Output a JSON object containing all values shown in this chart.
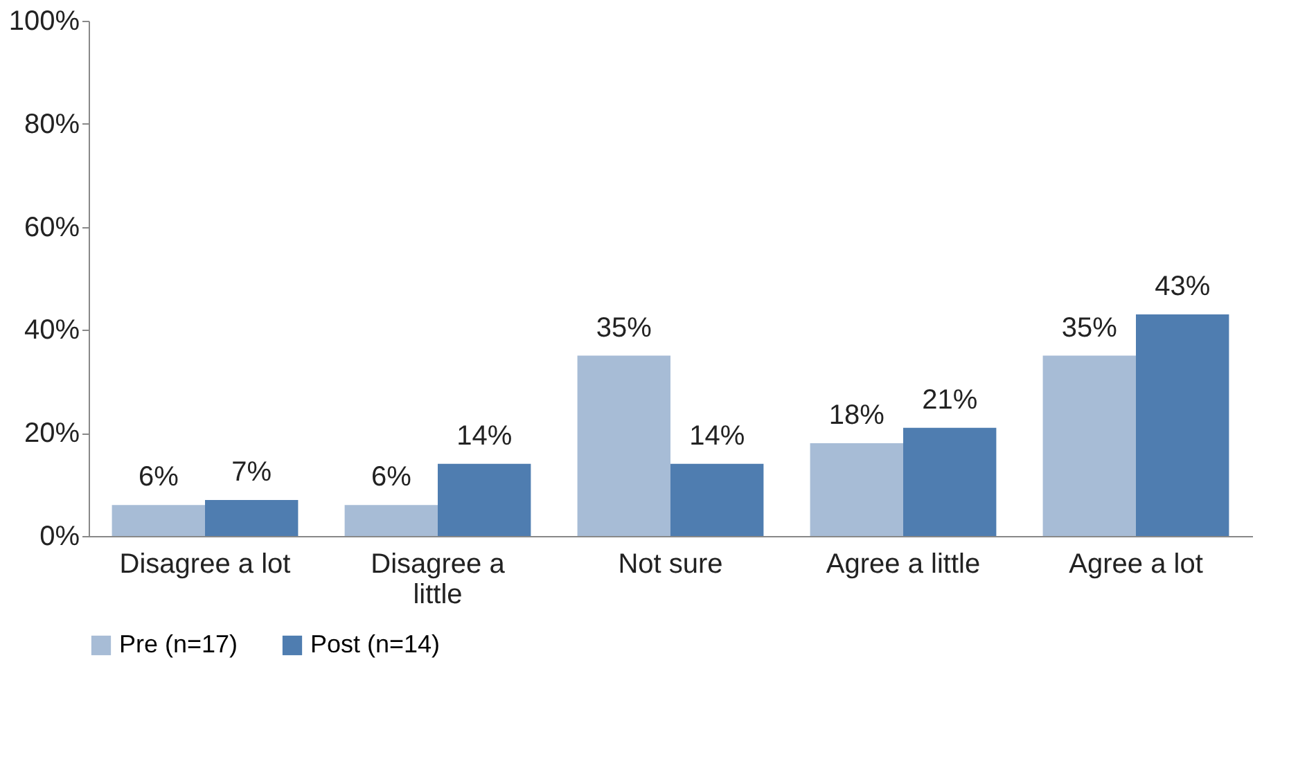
{
  "chart_data": {
    "type": "bar",
    "categories": [
      "Disagree a lot",
      "Disagree a little",
      "Not sure",
      "Agree a little",
      "Agree a lot"
    ],
    "series": [
      {
        "name": "Pre (n=17)",
        "color": "#a7bcd6",
        "values": [
          6,
          6,
          35,
          18,
          35
        ],
        "value_labels": [
          "6%",
          "6%",
          "35%",
          "18%",
          "35%"
        ]
      },
      {
        "name": "Post (n=14)",
        "color": "#4f7db0",
        "values": [
          7,
          14,
          14,
          21,
          43
        ],
        "value_labels": [
          "7%",
          "14%",
          "14%",
          "21%",
          "43%"
        ]
      }
    ],
    "ylim": [
      0,
      100
    ],
    "yticks": [
      {
        "value": 0,
        "label": "0%"
      },
      {
        "value": 20,
        "label": "20%"
      },
      {
        "value": 40,
        "label": "40%"
      },
      {
        "value": 60,
        "label": "60%"
      },
      {
        "value": 80,
        "label": "80%"
      },
      {
        "value": 100,
        "label": "100%"
      }
    ],
    "grid": false,
    "legend": "bottom"
  }
}
